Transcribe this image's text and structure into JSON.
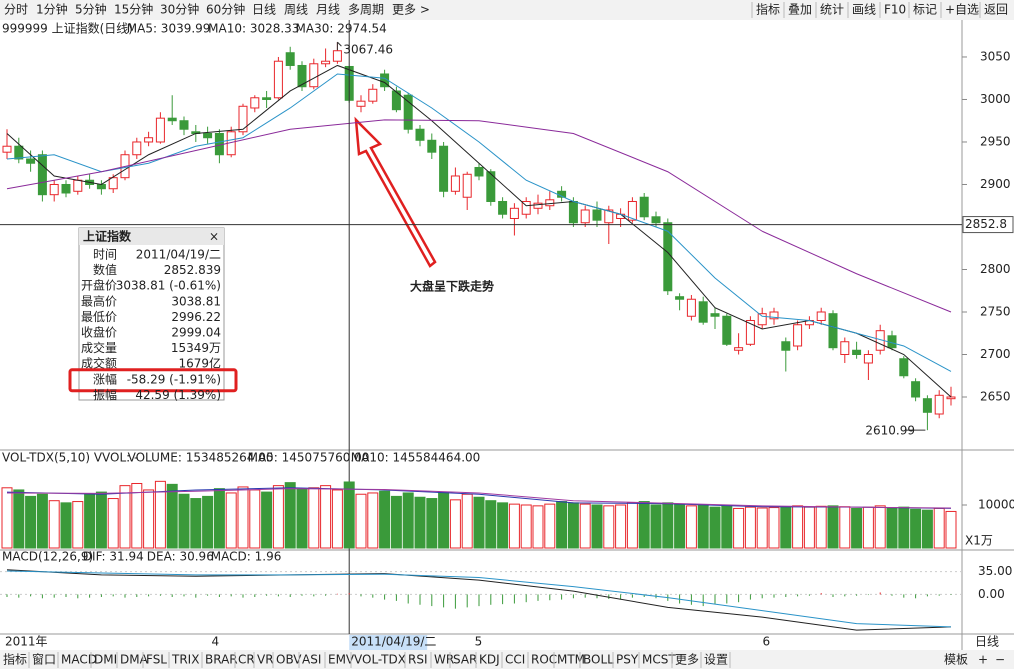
{
  "toolbar": {
    "items": [
      "分时",
      "1分钟",
      "5分钟",
      "15分钟",
      "30分钟",
      "60分钟",
      "日线",
      "周线",
      "月线",
      "多周期",
      "更多 >"
    ],
    "active_index": 6,
    "right_items": [
      "指标",
      "叠加",
      "统计",
      "画线",
      "F10",
      "标记",
      "+自选",
      "返回"
    ]
  },
  "bottom_tabs": {
    "items": [
      "指标",
      "窗口",
      "MACD",
      "DMI",
      "DMA",
      "FSL",
      "TRIX",
      "BRAR",
      "CR",
      "VR",
      "OBV",
      "ASI",
      "EMV",
      "VOL-TDX",
      "RSI",
      "WR",
      "SAR",
      "KDJ",
      "CCI",
      "ROC",
      "MTM",
      "BOLL",
      "PSY",
      "MCST",
      "更多",
      "设置"
    ],
    "active_index": 2,
    "right_items": [
      "模板",
      "+",
      "−"
    ]
  },
  "x_labels": [
    {
      "index": 0,
      "label": "2011年"
    },
    {
      "index": 17.5,
      "label": "4"
    },
    {
      "index": 39.8,
      "label": "5"
    },
    {
      "index": 64.2,
      "label": "6"
    }
  ],
  "cursor_date": "2011/04/19/二",
  "period_label": "日线",
  "chart_data": {
    "type": "candlestick",
    "legend": [
      "999999 上证指数(日线)",
      "MA5: 3039.99",
      "MA10: 3028.33",
      "MA30: 2974.54"
    ],
    "ylim": [
      2590,
      3073.5
    ],
    "yticks": [
      2650,
      2700,
      2750,
      2800,
      2850,
      2900,
      2950,
      3000,
      3050
    ],
    "cursor_index": 29,
    "crosshair": {
      "value": 2852.839,
      "label": "2852.8"
    },
    "high_mark": {
      "index": 28,
      "value": 3067.46,
      "label": "3067.46"
    },
    "low_mark": {
      "index": 78,
      "value": 2610.99,
      "label": "2610.99"
    },
    "colors": {
      "up": "#e8262b",
      "down": "#3a9a3a",
      "ma5": "#222222",
      "ma10": "#2a93c8",
      "ma30": "#8a2a9a"
    },
    "ohlc": [
      [
        2938,
        2965,
        2930,
        2945
      ],
      [
        2945,
        2955,
        2925,
        2930
      ],
      [
        2930,
        2940,
        2915,
        2925
      ],
      [
        2935,
        2940,
        2880,
        2888
      ],
      [
        2888,
        2905,
        2880,
        2900
      ],
      [
        2900,
        2905,
        2885,
        2890
      ],
      [
        2892,
        2910,
        2888,
        2905
      ],
      [
        2905,
        2912,
        2895,
        2900
      ],
      [
        2900,
        2905,
        2888,
        2895
      ],
      [
        2895,
        2912,
        2890,
        2908
      ],
      [
        2908,
        2940,
        2905,
        2935
      ],
      [
        2935,
        2955,
        2930,
        2950
      ],
      [
        2950,
        2962,
        2945,
        2955
      ],
      [
        2950,
        2985,
        2948,
        2978
      ],
      [
        2978,
        3005,
        2970,
        2975
      ],
      [
        2975,
        2980,
        2958,
        2965
      ],
      [
        2962,
        2970,
        2950,
        2960
      ],
      [
        2960,
        2968,
        2948,
        2955
      ],
      [
        2960,
        2965,
        2925,
        2935
      ],
      [
        2935,
        2968,
        2932,
        2962
      ],
      [
        2962,
        2995,
        2958,
        2992
      ],
      [
        2990,
        3005,
        2985,
        3002
      ],
      [
        3002,
        3010,
        2990,
        3000
      ],
      [
        3002,
        3050,
        3000,
        3045
      ],
      [
        3055,
        3062,
        3035,
        3040
      ],
      [
        3040,
        3045,
        3010,
        3015
      ],
      [
        3015,
        3048,
        3012,
        3042
      ],
      [
        3042,
        3060,
        3038,
        3045
      ],
      [
        3045,
        3067.46,
        3042,
        3057.33
      ],
      [
        3038.81,
        3038.81,
        2996.22,
        2999.04
      ],
      [
        2992,
        3005,
        2985,
        2998
      ],
      [
        2998,
        3018,
        2995,
        3012
      ],
      [
        3030,
        3035,
        3010,
        3015
      ],
      [
        3010,
        3015,
        2985,
        2988
      ],
      [
        3005,
        3008,
        2960,
        2965
      ],
      [
        2965,
        2970,
        2945,
        2952
      ],
      [
        2952,
        2960,
        2930,
        2938
      ],
      [
        2945,
        2950,
        2885,
        2892
      ],
      [
        2892,
        2920,
        2888,
        2910
      ],
      [
        2885,
        2915,
        2870,
        2912
      ],
      [
        2920,
        2925,
        2905,
        2910
      ],
      [
        2915,
        2918,
        2875,
        2880
      ],
      [
        2880,
        2885,
        2860,
        2865
      ],
      [
        2860,
        2878,
        2840,
        2872
      ],
      [
        2865,
        2885,
        2860,
        2880
      ],
      [
        2872,
        2888,
        2865,
        2878
      ],
      [
        2875,
        2892,
        2870,
        2882
      ],
      [
        2892,
        2898,
        2880,
        2885
      ],
      [
        2880,
        2885,
        2850,
        2855
      ],
      [
        2855,
        2875,
        2850,
        2870
      ],
      [
        2870,
        2880,
        2850,
        2858
      ],
      [
        2855,
        2875,
        2830,
        2870
      ],
      [
        2860,
        2872,
        2850,
        2865
      ],
      [
        2858,
        2885,
        2855,
        2880
      ],
      [
        2885,
        2890,
        2858,
        2862
      ],
      [
        2862,
        2868,
        2850,
        2855
      ],
      [
        2855,
        2860,
        2770,
        2775
      ],
      [
        2768,
        2772,
        2752,
        2765
      ],
      [
        2745,
        2770,
        2740,
        2765
      ],
      [
        2762,
        2768,
        2735,
        2738
      ],
      [
        2748,
        2755,
        2730,
        2745
      ],
      [
        2745,
        2748,
        2710,
        2712
      ],
      [
        2705,
        2725,
        2700,
        2708
      ],
      [
        2712,
        2745,
        2710,
        2740
      ],
      [
        2735,
        2755,
        2730,
        2748
      ],
      [
        2742,
        2755,
        2735,
        2750
      ],
      [
        2715,
        2720,
        2680,
        2705
      ],
      [
        2710,
        2740,
        2705,
        2735
      ],
      [
        2735,
        2745,
        2730,
        2740
      ],
      [
        2740,
        2755,
        2735,
        2750
      ],
      [
        2748,
        2752,
        2705,
        2708
      ],
      [
        2700,
        2720,
        2690,
        2715
      ],
      [
        2705,
        2715,
        2695,
        2700
      ],
      [
        2690,
        2705,
        2670,
        2700
      ],
      [
        2705,
        2735,
        2700,
        2728
      ],
      [
        2722,
        2728,
        2705,
        2708
      ],
      [
        2695,
        2698,
        2672,
        2675
      ],
      [
        2668,
        2672,
        2645,
        2650
      ],
      [
        2648,
        2652,
        2610.99,
        2632
      ],
      [
        2630,
        2658,
        2625,
        2652
      ],
      [
        2648,
        2662,
        2640,
        2650
      ]
    ],
    "ma_lines": [
      {
        "key": "ma5",
        "x": [
          0,
          4,
          8,
          12,
          16,
          20,
          24,
          28,
          32,
          36,
          40,
          44,
          48,
          52,
          56,
          60,
          64,
          68,
          72,
          76,
          80
        ],
        "values": [
          2960,
          2910,
          2900,
          2935,
          2960,
          2965,
          3010,
          3040,
          3020,
          2975,
          2925,
          2875,
          2880,
          2865,
          2820,
          2755,
          2730,
          2740,
          2725,
          2700,
          2650
        ]
      },
      {
        "key": "ma10",
        "x": [
          0,
          4,
          8,
          12,
          16,
          20,
          24,
          28,
          32,
          36,
          40,
          44,
          48,
          52,
          56,
          60,
          64,
          68,
          72,
          76,
          80
        ],
        "values": [
          2930,
          2935,
          2915,
          2925,
          2945,
          2955,
          2990,
          3030,
          3025,
          2990,
          2950,
          2905,
          2880,
          2865,
          2845,
          2790,
          2745,
          2740,
          2725,
          2710,
          2680
        ]
      },
      {
        "key": "ma30",
        "x": [
          0,
          8,
          16,
          24,
          32,
          40,
          48,
          56,
          64,
          72,
          80
        ],
        "values": [
          2895,
          2915,
          2940,
          2965,
          2976,
          2975,
          2960,
          2915,
          2845,
          2795,
          2750
        ]
      }
    ],
    "info": {
      "title": "上证指数",
      "rows": [
        [
          "时间",
          "2011/04/19/二"
        ],
        [
          "数值",
          "2852.839"
        ],
        [
          "开盘价",
          "3038.81 (-0.61%)"
        ],
        [
          "最高价",
          "3038.81"
        ],
        [
          "最低价",
          "2996.22"
        ],
        [
          "收盘价",
          "2999.04"
        ],
        [
          "成交量",
          "15349万"
        ],
        [
          "成交额",
          "1679亿"
        ],
        [
          "涨幅",
          "-58.29 (-1.91%)"
        ],
        [
          "振幅",
          "42.59 (1.39%)"
        ]
      ],
      "highlight_row": 8
    },
    "annotation": "大盘呈下跌走势"
  },
  "volume_chart": {
    "type": "bar",
    "legend": [
      "VOL-TDX(5,10) VVOL: -",
      "VOLUME: 153485264.00",
      "MA5: 145075760.00",
      "MA10: 145584464.00"
    ],
    "unit_label": "X1万",
    "ylim": [
      0,
      19300
    ],
    "yticks": [
      10000
    ],
    "values": [
      14000,
      13500,
      12000,
      12500,
      11000,
      10500,
      10800,
      12500,
      13000,
      11500,
      14500,
      15000,
      13500,
      15500,
      14800,
      12500,
      11500,
      12000,
      13800,
      12800,
      14200,
      13500,
      13000,
      14500,
      15200,
      13800,
      14000,
      14500,
      13500,
      15349,
      12500,
      12800,
      13200,
      12000,
      12800,
      11800,
      11500,
      13000,
      11200,
      12500,
      11800,
      11000,
      10500,
      10200,
      10000,
      9800,
      10200,
      10800,
      10500,
      10200,
      10000,
      9800,
      10000,
      10500,
      10800,
      10000,
      10500,
      10200,
      9800,
      9900,
      9500,
      9800,
      9200,
      9500,
      9300,
      9400,
      9600,
      9800,
      9500,
      9700,
      9800,
      9600,
      9200,
      9500,
      9800,
      9200,
      9500,
      9000,
      8800,
      9200,
      8500
    ],
    "ma_lines": [
      {
        "color": "#2a3ab0",
        "x": [
          0,
          8,
          16,
          24,
          32,
          40,
          48,
          56,
          64,
          72,
          80
        ],
        "values": [
          13000,
          12500,
          13500,
          14000,
          13500,
          12500,
          10500,
          10300,
          9600,
          9500,
          9200
        ]
      },
      {
        "color": "#a03aa0",
        "x": [
          0,
          8,
          16,
          24,
          32,
          40,
          48,
          56,
          64,
          72,
          80
        ],
        "values": [
          12800,
          12700,
          13200,
          13800,
          13600,
          12800,
          11000,
          10400,
          9800,
          9500,
          9300
        ]
      }
    ]
  },
  "macd_chart": {
    "type": "macd",
    "legend": [
      "MACD(12,26,9)",
      "DIF: 31.94",
      "DEA: 30.96",
      "MACD: 1.96"
    ],
    "ylim": [
      -61,
      53
    ],
    "yticks": [
      {
        "value": 35,
        "label": "35.00"
      },
      {
        "value": 0,
        "label": "0.00"
      }
    ],
    "hist": [
      -4,
      -5,
      -3,
      -6,
      -5,
      -4,
      -6,
      -5,
      -4,
      -3,
      -5,
      -4,
      -3,
      -2,
      -4,
      -3,
      -5,
      -2,
      -4,
      -3,
      -5,
      -4,
      -2,
      -3,
      -4,
      -2,
      -3,
      -2,
      1,
      1.96,
      -3,
      -5,
      -8,
      -10,
      -14,
      -16,
      -18,
      -20,
      -22,
      -20,
      -18,
      -16,
      -15,
      -14,
      -12,
      -10,
      -9,
      -8,
      -6,
      -5,
      -6,
      -7,
      -8,
      -5,
      -4,
      -6,
      -10,
      -14,
      -16,
      -18,
      -15,
      -14,
      -12,
      -8,
      -6,
      -5,
      -4,
      -3,
      -2,
      2,
      -4,
      -3,
      -2,
      -1,
      3,
      -2,
      -5,
      -6,
      -3,
      -2,
      -1
    ],
    "lines": [
      {
        "color": "#222222",
        "x": [
          0,
          8,
          16,
          24,
          32,
          40,
          48,
          56,
          64,
          72,
          80
        ],
        "values": [
          38,
          30,
          28,
          30,
          32,
          22,
          5,
          -20,
          -35,
          -55,
          -50
        ]
      },
      {
        "color": "#2a93c8",
        "x": [
          0,
          8,
          16,
          24,
          32,
          40,
          48,
          56,
          64,
          72,
          80
        ],
        "values": [
          36,
          33,
          30,
          30,
          31,
          26,
          12,
          -5,
          -25,
          -45,
          -50
        ]
      }
    ]
  }
}
